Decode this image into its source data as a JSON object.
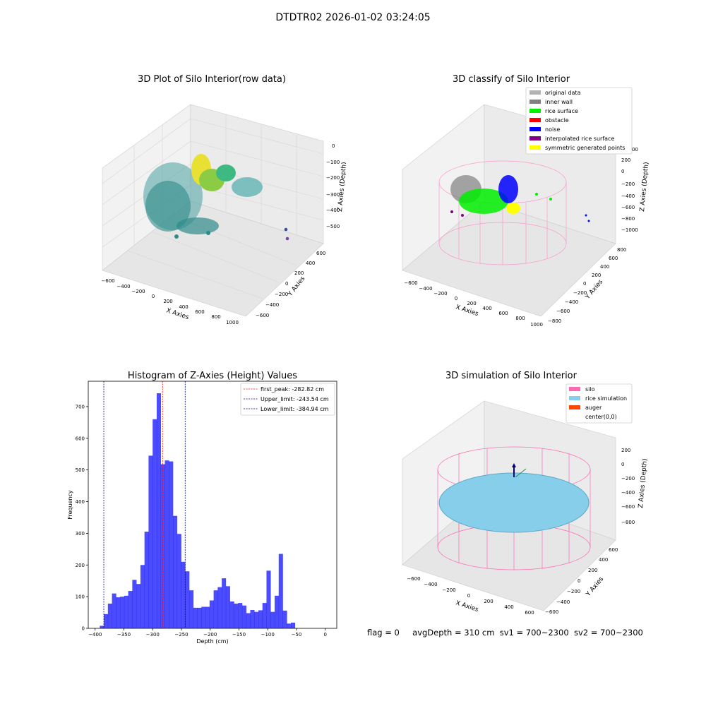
{
  "figure": {
    "suptitle": "DTDTR02 2026-01-02 03:24:05",
    "footer": {
      "flag": "flag = 0",
      "avg_depth": "avgDepth = 310 cm",
      "sv1": "sv1 = 700~2300",
      "sv2": "sv2 = 700~2300"
    }
  },
  "panels": {
    "raw": {
      "title": "3D Plot of Silo Interior(row data)",
      "xlabel": "X Axies",
      "ylabel": "Y Axies",
      "zlabel": "Z Axies (Depth)",
      "xticks": [
        "−600",
        "−400",
        "−200",
        "0",
        "200",
        "400",
        "600",
        "800",
        "1000"
      ],
      "yticks": [
        "−600",
        "−400",
        "−200",
        "0",
        "200",
        "400",
        "600"
      ],
      "zticks": [
        "0",
        "−100",
        "−200",
        "−300",
        "−400",
        "−500"
      ]
    },
    "classify": {
      "title": "3D classify of Silo Interior",
      "xlabel": "X Axies",
      "ylabel": "Y Axies",
      "zlabel": "Z Axies (Depth)",
      "xticks": [
        "−600",
        "−400",
        "−200",
        "0",
        "200",
        "400",
        "600",
        "800",
        "1000"
      ],
      "yticks": [
        "−800",
        "−600",
        "−400",
        "−200",
        "0",
        "200",
        "400",
        "600",
        "800"
      ],
      "zticks": [
        "200",
        "0",
        "−200",
        "−400",
        "−600",
        "−800",
        "−1000"
      ],
      "z_partial_label": "00",
      "legend": [
        {
          "label": "original data",
          "color": "#b3b3b3"
        },
        {
          "label": "inner wall",
          "color": "#808080"
        },
        {
          "label": "rice surface",
          "color": "#00ee00"
        },
        {
          "label": "obstacle",
          "color": "#ff0000"
        },
        {
          "label": "noise",
          "color": "#0000ff"
        },
        {
          "label": "interpolated rice surface",
          "color": "#800080"
        },
        {
          "label": "symmetric generated points",
          "color": "#ffff00"
        }
      ]
    },
    "simulation": {
      "title": "3D simulation of Silo Interior",
      "xlabel": "X Axies",
      "ylabel": "Y Axies",
      "zlabel": "Z Axies (Depth)",
      "xticks": [
        "−600",
        "−400",
        "−200",
        "0",
        "200",
        "400",
        "600"
      ],
      "yticks": [
        "−600",
        "−400",
        "−200",
        "0",
        "200",
        "400",
        "600"
      ],
      "zticks": [
        "200",
        "0",
        "−200",
        "−400",
        "−600",
        "−800"
      ],
      "legend": [
        {
          "label": "silo",
          "color": "#ff69b4"
        },
        {
          "label": "rice simulation",
          "color": "#87ceeb"
        },
        {
          "label": "auger",
          "color": "#ff4500"
        },
        {
          "label": "center(0,0)",
          "color": "#ffffff"
        }
      ]
    }
  },
  "chart_data": {
    "type": "bar",
    "title": "Histogram of Z-Axies (Height) Values",
    "xlabel": "Depth (cm)",
    "ylabel": "Frequency",
    "xlim": [
      -412,
      20
    ],
    "ylim": [
      0,
      780
    ],
    "xticks": [
      -400,
      -350,
      -300,
      -250,
      -200,
      -150,
      -100,
      -50,
      0
    ],
    "yticks": [
      0,
      100,
      200,
      300,
      400,
      500,
      600,
      700
    ],
    "bin_start": -392,
    "bin_width": 7.07,
    "values": [
      8,
      45,
      78,
      110,
      98,
      100,
      103,
      118,
      153,
      140,
      200,
      305,
      545,
      660,
      742,
      518,
      530,
      527,
      355,
      298,
      210,
      180,
      120,
      65,
      65,
      68,
      68,
      88,
      120,
      130,
      158,
      133,
      85,
      78,
      80,
      72,
      48,
      58,
      52,
      57,
      80,
      182,
      52,
      103,
      235,
      56,
      15,
      18
    ],
    "color": "#0000ff",
    "vlines": [
      {
        "x": -282.82,
        "label": "first_peak: -282.82 cm",
        "color": "#ff0000"
      },
      {
        "x": -243.54,
        "label": "Upper_limit: -243.54 cm",
        "color": "#00008b"
      },
      {
        "x": -384.94,
        "label": "Lower_limit: -384.94 cm",
        "color": "#00008b"
      }
    ],
    "legend_position": "top-right"
  }
}
